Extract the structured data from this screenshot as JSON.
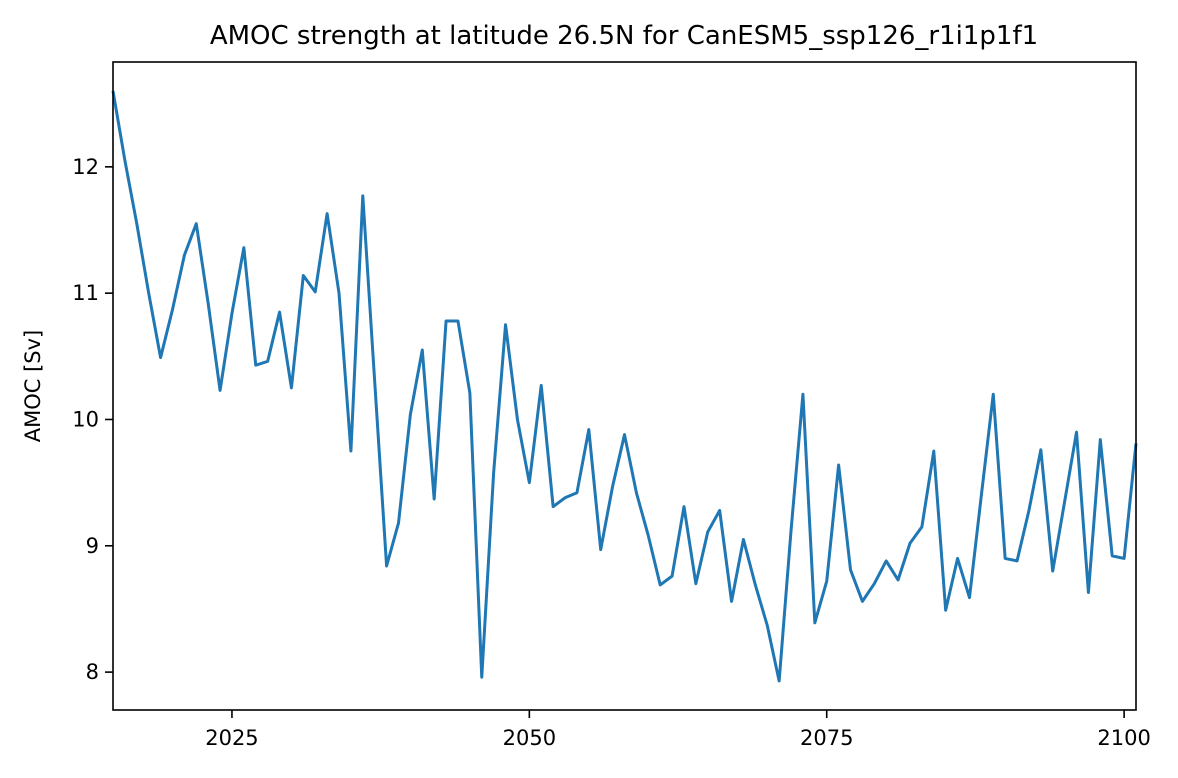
{
  "chart_data": {
    "type": "line",
    "title": "AMOC strength at latitude 26.5N for CanESM5_ssp126_r1i1p1f1",
    "xlabel": "",
    "ylabel": "AMOC [Sv]",
    "xlim": [
      2015,
      2101
    ],
    "ylim": [
      7.7,
      12.83
    ],
    "grid": false,
    "xticks": [
      2025,
      2050,
      2075,
      2100
    ],
    "yticks": [
      8,
      9,
      10,
      11,
      12
    ],
    "line_color": "#1f77b4",
    "series": [
      {
        "x": [
          2015,
          2016,
          2017,
          2018,
          2019,
          2020,
          2021,
          2022,
          2023,
          2024,
          2025,
          2026,
          2027,
          2028,
          2029,
          2030,
          2031,
          2032,
          2033,
          2034,
          2035,
          2036,
          2037,
          2038,
          2039,
          2040,
          2041,
          2042,
          2043,
          2044,
          2045,
          2046,
          2047,
          2048,
          2049,
          2050,
          2051,
          2052,
          2053,
          2054,
          2055,
          2056,
          2057,
          2058,
          2059,
          2060,
          2061,
          2062,
          2063,
          2064,
          2065,
          2066,
          2067,
          2068,
          2069,
          2070,
          2071,
          2072,
          2073,
          2074,
          2075,
          2076,
          2077,
          2078,
          2079,
          2080,
          2081,
          2082,
          2083,
          2084,
          2085,
          2086,
          2087,
          2088,
          2089,
          2090,
          2091,
          2092,
          2093,
          2094,
          2095,
          2096,
          2097,
          2098,
          2099,
          2100,
          2101
        ],
        "values": [
          12.6,
          12.05,
          11.55,
          11.0,
          10.49,
          10.87,
          11.3,
          11.55,
          10.92,
          10.23,
          10.84,
          11.36,
          10.43,
          10.46,
          10.85,
          10.25,
          11.14,
          11.01,
          11.63,
          11.0,
          9.75,
          11.77,
          10.3,
          8.84,
          9.18,
          10.04,
          10.55,
          9.37,
          10.78,
          10.78,
          10.21,
          7.96,
          9.58,
          10.75,
          10.0,
          9.5,
          10.27,
          9.31,
          9.38,
          9.42,
          9.92,
          8.97,
          9.47,
          9.88,
          9.42,
          9.08,
          8.69,
          8.76,
          9.31,
          8.7,
          9.11,
          9.28,
          8.56,
          9.05,
          8.69,
          8.37,
          7.93,
          9.12,
          10.2,
          8.39,
          8.72,
          9.64,
          8.81,
          8.56,
          8.7,
          8.88,
          8.73,
          9.02,
          9.15,
          9.75,
          8.49,
          8.9,
          8.59,
          9.4,
          10.2,
          8.9,
          8.88,
          9.28,
          9.76,
          8.8,
          9.35,
          9.9,
          8.63,
          9.84,
          8.92,
          8.9,
          9.81
        ]
      }
    ]
  }
}
